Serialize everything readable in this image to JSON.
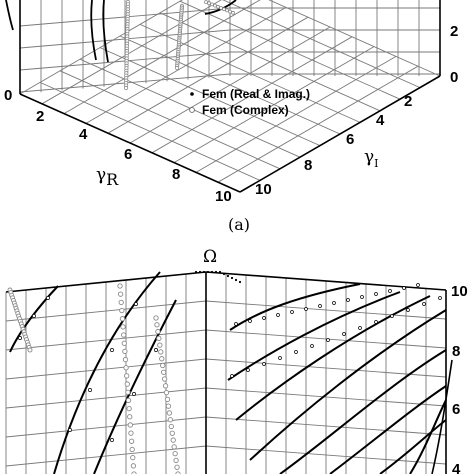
{
  "chart_data": [
    {
      "type": "scatter",
      "panel_label": "(a)",
      "xlabel_main": "γ",
      "xlabel_sub": "R",
      "ylabel_main": "γ",
      "ylabel_sub": "I",
      "x_ticks": [
        "0",
        "2",
        "4",
        "6",
        "8",
        "10"
      ],
      "y_ticks": [
        "2",
        "4",
        "6",
        "8",
        "10"
      ],
      "z_ticks": [
        "0",
        "2"
      ],
      "legend": [
        {
          "label": "Fem (Real & Imag.)",
          "marker": "filled-dot"
        },
        {
          "label": "Fem (Complex)",
          "marker": "open-circle"
        }
      ],
      "grid": true,
      "legend_position": "center"
    },
    {
      "type": "scatter",
      "zlabel": "Ω",
      "z_ticks": [
        "4",
        "6",
        "8",
        "10"
      ],
      "series": [
        {
          "marker": "filled-dot"
        },
        {
          "marker": "open-circle"
        }
      ],
      "grid": true
    }
  ],
  "colors": {
    "ink": "#000000",
    "grid": "#7a7a7a",
    "open_marker": "#8a8a8a"
  }
}
